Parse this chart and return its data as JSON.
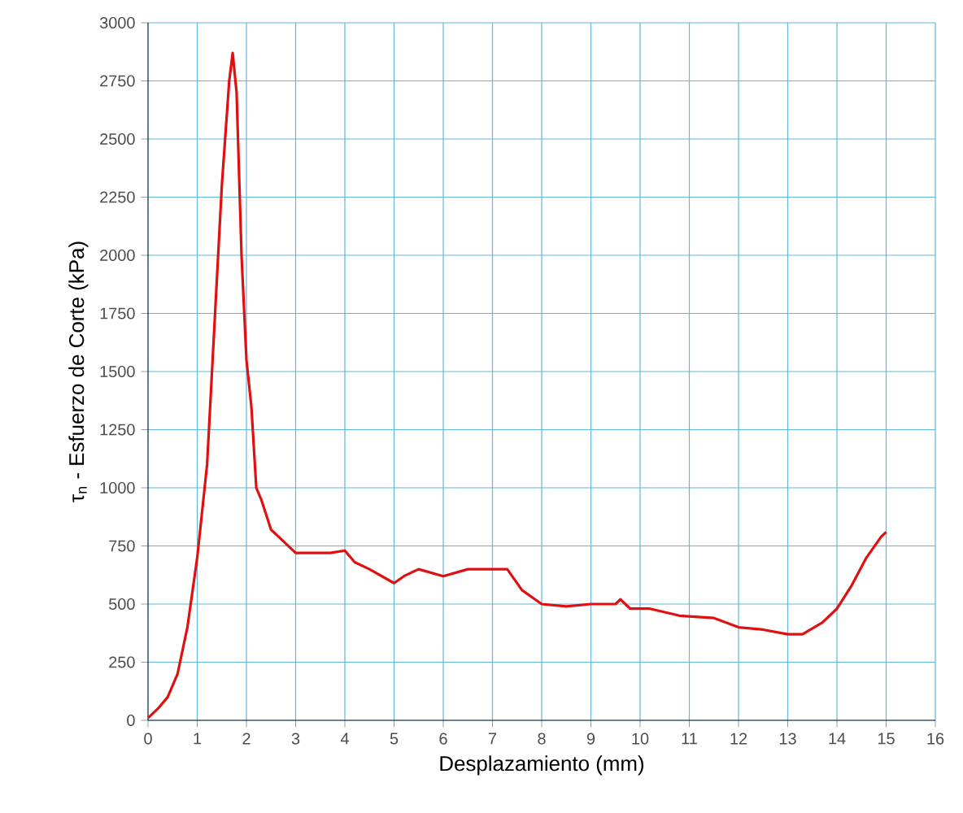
{
  "chart_data": {
    "type": "line",
    "xlabel": "Desplazamiento (mm)",
    "ylabel": "τ$_{n}$ - Esfuerzo de Corte (kPa)",
    "xlim": [
      0,
      16
    ],
    "ylim": [
      0,
      3000
    ],
    "xticks": [
      0,
      1,
      2,
      3,
      4,
      5,
      6,
      7,
      8,
      9,
      10,
      11,
      12,
      13,
      14,
      15,
      16
    ],
    "yticks": [
      0,
      250,
      500,
      750,
      1000,
      1250,
      1500,
      1750,
      2000,
      2250,
      2500,
      2750,
      3000
    ],
    "grid": true,
    "series": [
      {
        "color": "#e01010",
        "x": [
          0,
          0.2,
          0.4,
          0.6,
          0.8,
          1.0,
          1.2,
          1.35,
          1.5,
          1.65,
          1.72,
          1.8,
          1.9,
          2.0,
          2.1,
          2.2,
          2.3,
          2.5,
          2.7,
          3.0,
          3.3,
          3.7,
          4.0,
          4.2,
          4.5,
          5.0,
          5.2,
          5.5,
          6.0,
          6.5,
          7.0,
          7.3,
          7.6,
          8.0,
          8.5,
          9.0,
          9.5,
          9.6,
          9.8,
          10.2,
          10.8,
          11.5,
          12.0,
          12.5,
          13.0,
          13.3,
          13.7,
          14.0,
          14.3,
          14.6,
          14.9,
          15.0
        ],
        "values": [
          10,
          50,
          100,
          200,
          400,
          700,
          1100,
          1700,
          2300,
          2750,
          2870,
          2700,
          2000,
          1550,
          1350,
          1000,
          950,
          820,
          780,
          720,
          720,
          720,
          730,
          680,
          650,
          590,
          620,
          650,
          620,
          650,
          650,
          650,
          560,
          500,
          490,
          500,
          500,
          520,
          480,
          480,
          450,
          440,
          400,
          390,
          370,
          370,
          420,
          480,
          580,
          700,
          790,
          810
        ]
      }
    ]
  }
}
